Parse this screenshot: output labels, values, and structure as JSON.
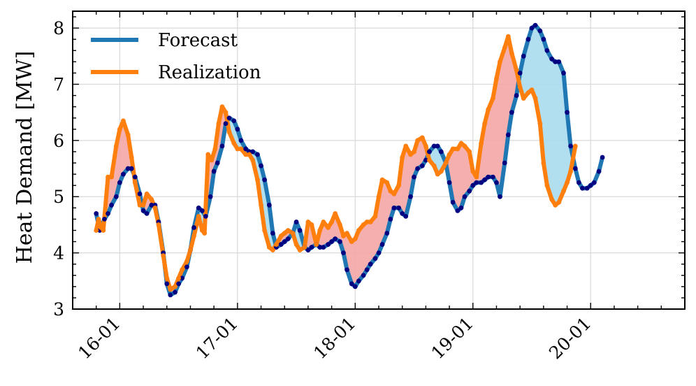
{
  "chart_data": {
    "type": "line",
    "ylabel": "Heat Demand [MW]",
    "xlabel": "",
    "ylim": [
      3,
      8.3
    ],
    "xlim": [
      15.6,
      20.8
    ],
    "yticks": [
      3,
      4,
      5,
      6,
      7,
      8
    ],
    "ytick_labels": [
      "3",
      "4",
      "5",
      "6",
      "7",
      "8"
    ],
    "xticks": [
      16,
      17,
      18,
      19,
      20
    ],
    "xtick_labels": [
      "16-01",
      "17-01",
      "18-01",
      "19-01",
      "20-01"
    ],
    "grid": true,
    "legend_position": "top-left",
    "colors": {
      "forecast": "#1f77b4",
      "realization": "#ff7f0e",
      "forecast_markers": "#000080",
      "realization_markers": "#ff7f0e",
      "fill_over": "#f4a6a6",
      "fill_under": "#a9dcee"
    },
    "series": [
      {
        "name": "Forecast",
        "points": [
          [
            15.8,
            4.7
          ],
          [
            15.83,
            4.4
          ],
          [
            15.87,
            4.6
          ],
          [
            15.9,
            4.7
          ],
          [
            15.93,
            4.85
          ],
          [
            15.97,
            5.0
          ],
          [
            16.0,
            5.25
          ],
          [
            16.03,
            5.4
          ],
          [
            16.07,
            5.5
          ],
          [
            16.1,
            5.5
          ],
          [
            16.13,
            5.35
          ],
          [
            16.17,
            5.05
          ],
          [
            16.2,
            4.75
          ],
          [
            16.23,
            4.7
          ],
          [
            16.27,
            4.85
          ],
          [
            16.3,
            4.85
          ],
          [
            16.33,
            4.55
          ],
          [
            16.37,
            4.0
          ],
          [
            16.4,
            3.45
          ],
          [
            16.43,
            3.25
          ],
          [
            16.47,
            3.3
          ],
          [
            16.5,
            3.45
          ],
          [
            16.53,
            3.55
          ],
          [
            16.57,
            3.75
          ],
          [
            16.6,
            4.05
          ],
          [
            16.63,
            4.45
          ],
          [
            16.67,
            4.8
          ],
          [
            16.7,
            4.75
          ],
          [
            16.73,
            4.65
          ],
          [
            16.77,
            5.0
          ],
          [
            16.8,
            5.45
          ],
          [
            16.83,
            5.6
          ],
          [
            16.87,
            5.9
          ],
          [
            16.9,
            6.3
          ],
          [
            16.93,
            6.4
          ],
          [
            16.97,
            6.35
          ],
          [
            17.0,
            6.2
          ],
          [
            17.03,
            6.0
          ],
          [
            17.07,
            5.85
          ],
          [
            17.1,
            5.8
          ],
          [
            17.13,
            5.8
          ],
          [
            17.17,
            5.75
          ],
          [
            17.2,
            5.55
          ],
          [
            17.23,
            5.3
          ],
          [
            17.27,
            4.85
          ],
          [
            17.3,
            4.35
          ],
          [
            17.33,
            4.1
          ],
          [
            17.37,
            4.15
          ],
          [
            17.4,
            4.2
          ],
          [
            17.43,
            4.25
          ],
          [
            17.47,
            4.35
          ],
          [
            17.5,
            4.55
          ],
          [
            17.53,
            4.4
          ],
          [
            17.57,
            4.1
          ],
          [
            17.6,
            4.05
          ],
          [
            17.63,
            4.1
          ],
          [
            17.67,
            4.15
          ],
          [
            17.7,
            4.1
          ],
          [
            17.73,
            4.1
          ],
          [
            17.77,
            4.15
          ],
          [
            17.8,
            4.2
          ],
          [
            17.83,
            4.25
          ],
          [
            17.87,
            4.2
          ],
          [
            17.9,
            4.0
          ],
          [
            17.93,
            3.7
          ],
          [
            17.97,
            3.45
          ],
          [
            18.0,
            3.4
          ],
          [
            18.03,
            3.5
          ],
          [
            18.07,
            3.6
          ],
          [
            18.1,
            3.7
          ],
          [
            18.13,
            3.8
          ],
          [
            18.17,
            3.9
          ],
          [
            18.2,
            4.0
          ],
          [
            18.23,
            4.15
          ],
          [
            18.27,
            4.35
          ],
          [
            18.3,
            4.6
          ],
          [
            18.33,
            4.8
          ],
          [
            18.37,
            4.8
          ],
          [
            18.4,
            4.7
          ],
          [
            18.43,
            4.65
          ],
          [
            18.47,
            5.0
          ],
          [
            18.5,
            5.35
          ],
          [
            18.53,
            5.5
          ],
          [
            18.57,
            5.55
          ],
          [
            18.6,
            5.65
          ],
          [
            18.63,
            5.8
          ],
          [
            18.67,
            5.9
          ],
          [
            18.7,
            5.9
          ],
          [
            18.73,
            5.8
          ],
          [
            18.77,
            5.6
          ],
          [
            18.8,
            5.25
          ],
          [
            18.83,
            4.9
          ],
          [
            18.87,
            4.75
          ],
          [
            18.9,
            4.8
          ],
          [
            18.93,
            5.0
          ],
          [
            18.97,
            5.1
          ],
          [
            19.0,
            5.2
          ],
          [
            19.03,
            5.25
          ],
          [
            19.07,
            5.25
          ],
          [
            19.1,
            5.3
          ],
          [
            19.13,
            5.35
          ],
          [
            19.17,
            5.35
          ],
          [
            19.2,
            5.25
          ],
          [
            19.23,
            5.0
          ],
          [
            19.27,
            5.6
          ],
          [
            19.3,
            6.1
          ],
          [
            19.33,
            6.5
          ],
          [
            19.37,
            6.8
          ],
          [
            19.4,
            7.2
          ],
          [
            19.43,
            7.5
          ],
          [
            19.47,
            7.8
          ],
          [
            19.5,
            8.0
          ],
          [
            19.53,
            8.05
          ],
          [
            19.57,
            7.95
          ],
          [
            19.6,
            7.8
          ],
          [
            19.63,
            7.6
          ],
          [
            19.67,
            7.45
          ],
          [
            19.7,
            7.4
          ],
          [
            19.73,
            7.4
          ],
          [
            19.77,
            7.2
          ],
          [
            19.8,
            6.5
          ],
          [
            19.83,
            5.9
          ],
          [
            19.87,
            5.5
          ],
          [
            19.9,
            5.25
          ],
          [
            19.93,
            5.15
          ],
          [
            19.97,
            5.15
          ],
          [
            20.0,
            5.2
          ],
          [
            20.03,
            5.25
          ],
          [
            20.07,
            5.45
          ],
          [
            20.1,
            5.7
          ]
        ]
      },
      {
        "name": "Realization",
        "points": [
          [
            15.8,
            4.4
          ],
          [
            15.82,
            4.6
          ],
          [
            15.84,
            4.45
          ],
          [
            15.86,
            4.4
          ],
          [
            15.9,
            5.35
          ],
          [
            15.93,
            5.35
          ],
          [
            15.97,
            5.9
          ],
          [
            16.0,
            6.2
          ],
          [
            16.03,
            6.35
          ],
          [
            16.07,
            6.1
          ],
          [
            16.1,
            5.7
          ],
          [
            16.13,
            5.25
          ],
          [
            16.17,
            4.85
          ],
          [
            16.2,
            4.85
          ],
          [
            16.23,
            5.05
          ],
          [
            16.27,
            4.95
          ],
          [
            16.3,
            4.8
          ],
          [
            16.33,
            4.5
          ],
          [
            16.37,
            3.95
          ],
          [
            16.4,
            3.55
          ],
          [
            16.43,
            3.35
          ],
          [
            16.47,
            3.4
          ],
          [
            16.5,
            3.55
          ],
          [
            16.53,
            3.7
          ],
          [
            16.57,
            3.85
          ],
          [
            16.6,
            4.05
          ],
          [
            16.63,
            4.3
          ],
          [
            16.67,
            4.65
          ],
          [
            16.7,
            4.4
          ],
          [
            16.72,
            4.35
          ],
          [
            16.75,
            5.75
          ],
          [
            16.78,
            5.65
          ],
          [
            16.81,
            5.85
          ],
          [
            16.84,
            6.3
          ],
          [
            16.87,
            6.6
          ],
          [
            16.9,
            6.5
          ],
          [
            16.93,
            6.15
          ],
          [
            16.97,
            5.95
          ],
          [
            17.0,
            5.85
          ],
          [
            17.03,
            5.85
          ],
          [
            17.07,
            5.75
          ],
          [
            17.1,
            5.75
          ],
          [
            17.13,
            5.65
          ],
          [
            17.17,
            5.3
          ],
          [
            17.2,
            4.85
          ],
          [
            17.23,
            4.4
          ],
          [
            17.27,
            4.1
          ],
          [
            17.3,
            4.05
          ],
          [
            17.33,
            4.15
          ],
          [
            17.37,
            4.3
          ],
          [
            17.4,
            4.35
          ],
          [
            17.43,
            4.4
          ],
          [
            17.47,
            4.35
          ],
          [
            17.5,
            4.15
          ],
          [
            17.53,
            4.05
          ],
          [
            17.57,
            4.1
          ],
          [
            17.6,
            4.55
          ],
          [
            17.63,
            4.5
          ],
          [
            17.67,
            4.15
          ],
          [
            17.7,
            4.4
          ],
          [
            17.73,
            4.55
          ],
          [
            17.77,
            4.45
          ],
          [
            17.8,
            4.55
          ],
          [
            17.83,
            4.7
          ],
          [
            17.87,
            4.5
          ],
          [
            17.9,
            4.3
          ],
          [
            17.93,
            4.35
          ],
          [
            17.97,
            4.2
          ],
          [
            18.0,
            4.25
          ],
          [
            18.03,
            4.4
          ],
          [
            18.07,
            4.5
          ],
          [
            18.1,
            4.55
          ],
          [
            18.13,
            4.55
          ],
          [
            18.17,
            4.65
          ],
          [
            18.2,
            5.0
          ],
          [
            18.23,
            5.3
          ],
          [
            18.27,
            5.25
          ],
          [
            18.3,
            5.1
          ],
          [
            18.33,
            5.05
          ],
          [
            18.37,
            5.2
          ],
          [
            18.4,
            5.7
          ],
          [
            18.43,
            5.9
          ],
          [
            18.47,
            5.75
          ],
          [
            18.5,
            5.8
          ],
          [
            18.53,
            6.0
          ],
          [
            18.57,
            6.05
          ],
          [
            18.6,
            5.9
          ],
          [
            18.63,
            5.65
          ],
          [
            18.67,
            5.55
          ],
          [
            18.7,
            5.4
          ],
          [
            18.73,
            5.45
          ],
          [
            18.77,
            5.6
          ],
          [
            18.8,
            5.75
          ],
          [
            18.83,
            5.85
          ],
          [
            18.87,
            5.85
          ],
          [
            18.9,
            5.95
          ],
          [
            18.93,
            5.9
          ],
          [
            18.97,
            5.8
          ],
          [
            19.0,
            5.45
          ],
          [
            19.03,
            5.35
          ],
          [
            19.07,
            5.95
          ],
          [
            19.1,
            6.3
          ],
          [
            19.13,
            6.55
          ],
          [
            19.17,
            6.75
          ],
          [
            19.2,
            7.1
          ],
          [
            19.23,
            7.4
          ],
          [
            19.27,
            7.65
          ],
          [
            19.3,
            7.85
          ],
          [
            19.33,
            7.55
          ],
          [
            19.37,
            7.25
          ],
          [
            19.4,
            6.95
          ],
          [
            19.43,
            6.75
          ],
          [
            19.47,
            6.85
          ],
          [
            19.5,
            6.9
          ],
          [
            19.53,
            6.75
          ],
          [
            19.57,
            6.3
          ],
          [
            19.6,
            5.6
          ],
          [
            19.63,
            5.2
          ],
          [
            19.67,
            4.95
          ],
          [
            19.7,
            4.85
          ],
          [
            19.73,
            4.9
          ],
          [
            19.77,
            5.1
          ],
          [
            19.8,
            5.25
          ],
          [
            19.83,
            5.45
          ],
          [
            19.87,
            5.9
          ]
        ]
      }
    ]
  }
}
